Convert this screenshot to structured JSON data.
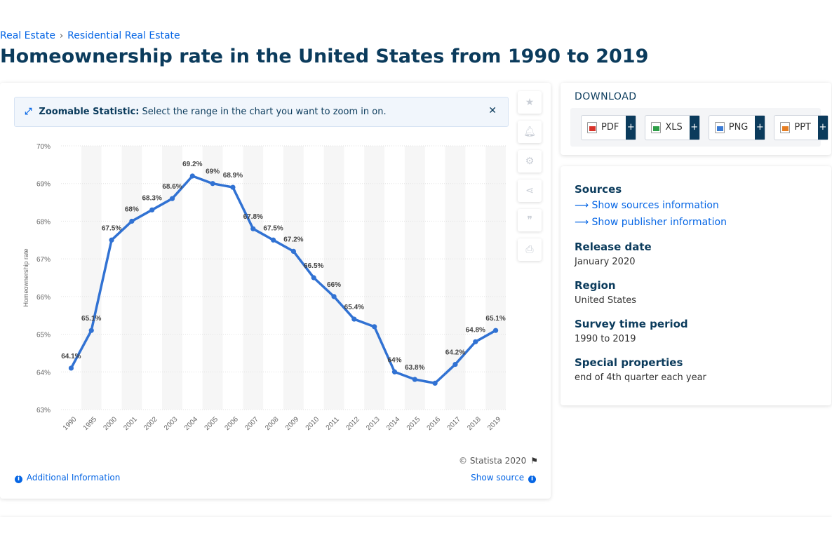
{
  "breadcrumb": [
    "Real Estate",
    "Residential Real Estate"
  ],
  "title": "Homeownership rate in the United States from 1990 to 2019",
  "zoom": {
    "bold": "Zoomable Statistic:",
    "text": "Select the range in the chart you want to zoom in on."
  },
  "footer": {
    "copyright": "© Statista 2020",
    "additional": "Additional Information",
    "show_source": "Show source"
  },
  "download": {
    "title": "DOWNLOAD",
    "buttons": [
      {
        "label": "PDF",
        "color": "#d9342b"
      },
      {
        "label": "XLS",
        "color": "#2e9e47"
      },
      {
        "label": "PNG",
        "color": "#3a7bd5"
      },
      {
        "label": "PPT",
        "color": "#e67e22"
      }
    ]
  },
  "meta": {
    "sources_head": "Sources",
    "sources_link": "Show sources information",
    "publisher_link": "Show publisher information",
    "release_head": "Release date",
    "release_val": "January 2020",
    "region_head": "Region",
    "region_val": "United States",
    "survey_head": "Survey time period",
    "survey_val": "1990 to 2019",
    "special_head": "Special properties",
    "special_val": "end of 4th quarter each year"
  },
  "chart_data": {
    "type": "line",
    "categories": [
      "1990",
      "1995",
      "2000",
      "2001",
      "2002",
      "2003",
      "2004",
      "2005",
      "2006",
      "2007",
      "2008",
      "2009",
      "2010",
      "2011",
      "2012",
      "2013",
      "2014",
      "2015",
      "2016",
      "2017",
      "2018",
      "2019"
    ],
    "values": [
      64.1,
      65.1,
      67.5,
      68,
      68.3,
      68.6,
      69.2,
      69,
      68.9,
      67.8,
      67.5,
      67.2,
      66.5,
      66,
      65.4,
      65.2,
      64,
      63.8,
      63.7,
      64.2,
      64.8,
      65.1
    ],
    "labels": [
      "64.1%",
      "65.1%",
      "67.5%",
      "68%",
      "68.3%",
      "68.6%",
      "69.2%",
      "69%",
      "68.9%",
      "67.8%",
      "67.5%",
      "67.2%",
      "66.5%",
      "66%",
      "65.4%",
      "",
      "64%",
      "63.8%",
      "",
      "64.2%",
      "64.8%",
      "65.1%"
    ],
    "yticks": [
      "63%",
      "64%",
      "65%",
      "66%",
      "67%",
      "68%",
      "69%",
      "70%"
    ],
    "ylim": [
      63,
      70
    ],
    "ylabel": "Homeownership rate",
    "xlabel": "",
    "line_color": "#3172d3",
    "grid": true
  }
}
